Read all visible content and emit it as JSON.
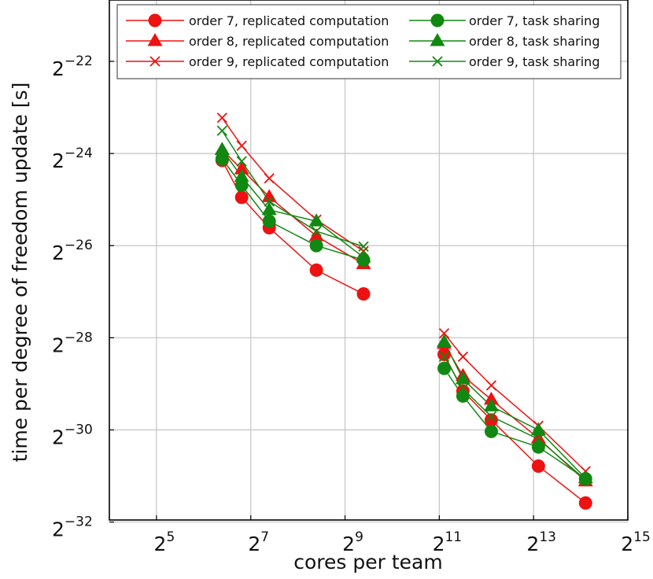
{
  "chart_data": {
    "type": "line",
    "title": "",
    "xlabel": "cores per team",
    "ylabel": "time per degree of freedom update [s]",
    "x_scale": "log2",
    "y_scale": "log2",
    "xlim": [
      16,
      32768
    ],
    "ylim": [
      2.4e-10,
      6e-07
    ],
    "x_ticks": [
      {
        "value": 32,
        "base": "2",
        "exp": "5"
      },
      {
        "value": 128,
        "base": "2",
        "exp": "7"
      },
      {
        "value": 512,
        "base": "2",
        "exp": "9"
      },
      {
        "value": 2048,
        "base": "2",
        "exp": "11"
      },
      {
        "value": 8192,
        "base": "2",
        "exp": "13"
      },
      {
        "value": 32768,
        "base": "2",
        "exp": "15"
      }
    ],
    "y_ticks": [
      {
        "value": 2.384e-07,
        "base": "2",
        "exp": "−22"
      },
      {
        "value": 5.96e-08,
        "base": "2",
        "exp": "−24"
      },
      {
        "value": 1.49e-08,
        "base": "2",
        "exp": "−26"
      },
      {
        "value": 3.725e-09,
        "base": "2",
        "exp": "−28"
      },
      {
        "value": 9.31e-10,
        "base": "2",
        "exp": "−30"
      },
      {
        "value": 2.328e-10,
        "base": "2",
        "exp": "−32"
      }
    ],
    "grid": true,
    "legend_position": "top",
    "series": [
      {
        "name": "order 7, replicated computation",
        "color": "#ee1111",
        "marker": "circle",
        "segments": [
          {
            "x": [
              84,
              112,
              168,
              336,
              672
            ],
            "y": [
              5.37e-08,
              3.08e-08,
              1.95e-08,
              1.03e-08,
              7.2e-09
            ]
          },
          {
            "x": [
              2200,
              2900,
              4400,
              8800,
              17600
            ],
            "y": [
              2.9e-09,
              1.67e-09,
              1.08e-09,
              5.4e-10,
              3.1e-10
            ]
          }
        ]
      },
      {
        "name": "order 8, replicated computation",
        "color": "#ee1111",
        "marker": "triangle",
        "segments": [
          {
            "x": [
              84,
              112,
              168,
              336,
              672
            ],
            "y": [
              6.3e-08,
              4.7e-08,
              3.1e-08,
              1.72e-08,
              1.13e-08
            ]
          },
          {
            "x": [
              2200,
              2900,
              4400,
              8800,
              17600
            ],
            "y": [
              3.4e-09,
              2.1e-09,
              1.47e-09,
              8.2e-10,
              4.3e-10
            ]
          }
        ]
      },
      {
        "name": "order 9, replicated computation",
        "color": "#ee1111",
        "marker": "x",
        "segments": [
          {
            "x": [
              84,
              112,
              168,
              336,
              672
            ],
            "y": [
              1.02e-07,
              6.7e-08,
              4.1e-08,
              2.2e-08,
              1.37e-08
            ]
          },
          {
            "x": [
              2200,
              2900,
              4400,
              8800,
              17600
            ],
            "y": [
              3.98e-09,
              2.8e-09,
              1.82e-09,
              9.9e-10,
              5e-10
            ]
          }
        ]
      },
      {
        "name": "order 7, task sharing",
        "color": "#118811",
        "marker": "circle",
        "segments": [
          {
            "x": [
              84,
              112,
              168,
              336,
              672
            ],
            "y": [
              5.5e-08,
              3.7e-08,
              2.15e-08,
              1.49e-08,
              1.2e-08
            ]
          },
          {
            "x": [
              2200,
              2900,
              4400,
              8800,
              17600
            ],
            "y": [
              2.35e-09,
              1.55e-09,
              9.1e-10,
              7.2e-10,
              4.46e-10
            ]
          }
        ]
      },
      {
        "name": "order 8, task sharing",
        "color": "#118811",
        "marker": "triangle",
        "segments": [
          {
            "x": [
              84,
              112,
              168,
              336,
              672
            ],
            "y": [
              6.3e-08,
              4.2e-08,
              2.55e-08,
              2.15e-08,
              1.25e-08
            ]
          },
          {
            "x": [
              2200,
              2900,
              4400,
              8800,
              17600
            ],
            "y": [
              3.5e-09,
              2e-09,
              1.33e-09,
              9.3e-10,
              4.5e-10
            ]
          }
        ]
      },
      {
        "name": "order 9, task sharing",
        "color": "#118811",
        "marker": "x",
        "segments": [
          {
            "x": [
              84,
              112,
              168,
              336,
              672
            ],
            "y": [
              8.4e-08,
              5.3e-08,
              2.9e-08,
              1.85e-08,
              1.47e-08
            ]
          },
          {
            "x": [
              2200,
              2900,
              4400,
              8800,
              17600
            ],
            "y": [
              2.8e-09,
              1.73e-09,
              1.14e-09,
              8.1e-10,
              4.4e-10
            ]
          }
        ]
      }
    ]
  }
}
